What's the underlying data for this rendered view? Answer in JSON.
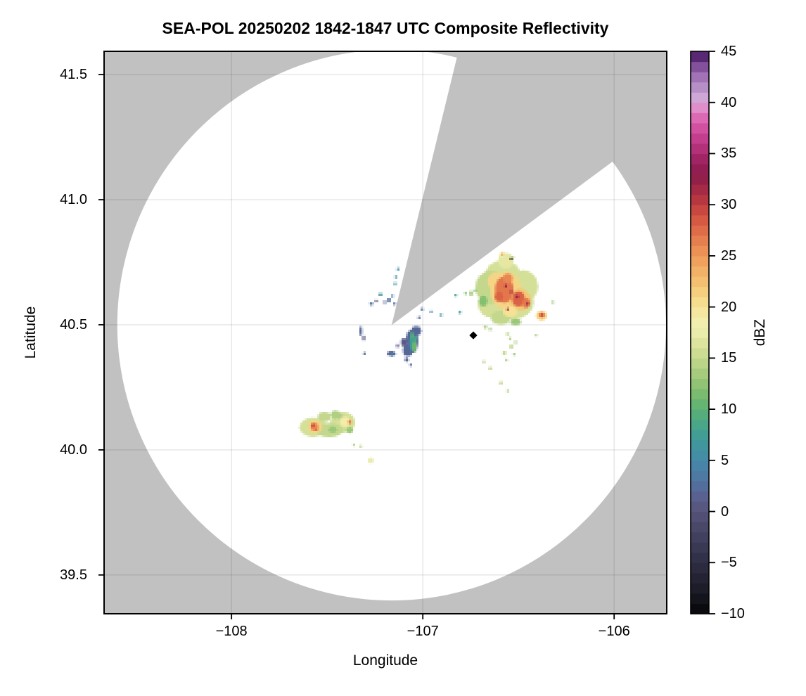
{
  "title": "SEA-POL 20250202 1842-1847 UTC Composite Reflectivity",
  "axes": {
    "xlabel": "Longitude",
    "ylabel": "Latitude",
    "xlim": [
      -108.666,
      -105.725
    ],
    "ylim": [
      39.345,
      41.593
    ],
    "xticks": [
      -108,
      -107,
      -106
    ],
    "yticks": [
      39.5,
      40.0,
      40.5,
      41.0,
      41.5
    ],
    "grid": true,
    "background_color": "#c1c1c1",
    "coverage_color": "#ffffff",
    "grid_color": "rgba(0,0,0,0.10)",
    "frame_color": "#000000"
  },
  "colorbar": {
    "label": "dBZ",
    "min": -10,
    "max": 45,
    "band_step": 1,
    "ticks": [
      -10,
      -5,
      0,
      5,
      10,
      15,
      20,
      25,
      30,
      35,
      40,
      45
    ],
    "colormap_anchors": [
      [
        -10,
        "#060608"
      ],
      [
        -8,
        "#191824"
      ],
      [
        -6,
        "#272639"
      ],
      [
        -4,
        "#36354f"
      ],
      [
        -2,
        "#454463"
      ],
      [
        0,
        "#555378"
      ],
      [
        1,
        "#5a5a87"
      ],
      [
        2,
        "#556797"
      ],
      [
        3,
        "#5073a0"
      ],
      [
        4,
        "#4b7ea6"
      ],
      [
        5,
        "#4589a7"
      ],
      [
        6,
        "#4292a2"
      ],
      [
        7,
        "#409a9a"
      ],
      [
        8,
        "#44a28e"
      ],
      [
        9,
        "#4ea981"
      ],
      [
        10,
        "#5cb075"
      ],
      [
        11,
        "#6fb76e"
      ],
      [
        12,
        "#85bf70"
      ],
      [
        13,
        "#9bc778"
      ],
      [
        14,
        "#b0cf82"
      ],
      [
        15,
        "#c3d88d"
      ],
      [
        16,
        "#d4e098"
      ],
      [
        17,
        "#e3e8a4"
      ],
      [
        18,
        "#f0efb1"
      ],
      [
        19,
        "#f4eca9"
      ],
      [
        20,
        "#f6e295"
      ],
      [
        21,
        "#f5d585"
      ],
      [
        22,
        "#f4c777"
      ],
      [
        23,
        "#f2b86b"
      ],
      [
        24,
        "#f0a960"
      ],
      [
        25,
        "#ed9959"
      ],
      [
        26,
        "#e98852"
      ],
      [
        27,
        "#e3764b"
      ],
      [
        28,
        "#da6245"
      ],
      [
        29,
        "#cf4f40"
      ],
      [
        30,
        "#c03e3f"
      ],
      [
        31,
        "#ae3043"
      ],
      [
        32,
        "#9a2447"
      ],
      [
        33,
        "#8c1c4a"
      ],
      [
        34,
        "#971f5b"
      ],
      [
        35,
        "#aa2a6e"
      ],
      [
        36,
        "#bc3784"
      ],
      [
        37,
        "#cc4597"
      ],
      [
        38,
        "#d85aa9"
      ],
      [
        39,
        "#e078bc"
      ],
      [
        39.7,
        "#df97cf"
      ],
      [
        40.5,
        "#cfa6d6"
      ],
      [
        41.5,
        "#b78fc7"
      ],
      [
        42.5,
        "#a172b5"
      ],
      [
        43.5,
        "#83519c"
      ],
      [
        44.3,
        "#643181"
      ],
      [
        45,
        "#3a1053"
      ]
    ]
  },
  "chart_data": {
    "type": "heatmap",
    "description": "Radar PPI composite reflectivity map. White disk = radar coverage circle on gray background; gray wedge = blocked sector NNE-NE of the radar; colored speckled patches = reflectivity echoes in dBZ.",
    "radar": {
      "center_lon": -107.163,
      "center_lat": 40.499,
      "range_lon_deg": 1.434,
      "range_lat_deg": 1.101
    },
    "blocked_sector": {
      "azimuth_start_deg": 13.7,
      "azimuth_end_deg": 53.5
    },
    "marker": {
      "lon": -106.736,
      "lat": 40.458,
      "shape": "diamond",
      "color": "#000000"
    },
    "echo_clusters": [
      {
        "name": "central-weak-echo",
        "dbz_range": [
          0,
          12
        ],
        "patches": [
          [
            -107.056,
            40.435,
            0.033,
            0.048,
            2
          ],
          [
            -107.078,
            40.399,
            0.026,
            0.025,
            2
          ],
          [
            -107.034,
            40.475,
            0.026,
            0.02,
            2
          ],
          [
            -107.1,
            40.43,
            0.015,
            0.017,
            1
          ],
          [
            -107.052,
            40.43,
            0.018,
            0.034,
            7
          ],
          [
            -107.044,
            40.413,
            0.011,
            0.022,
            11
          ],
          [
            -107.056,
            40.458,
            0.007,
            0.017,
            10
          ],
          [
            -107.037,
            40.441,
            0.007,
            0.011,
            9
          ],
          [
            -107.085,
            40.36,
            0.011,
            0.008,
            2
          ],
          [
            -107.269,
            40.584,
            0.011,
            0.006,
            3
          ],
          [
            -107.243,
            40.595,
            0.007,
            0.006,
            1
          ],
          [
            -107.221,
            40.621,
            0.011,
            0.006,
            6
          ],
          [
            -107.199,
            40.59,
            0.007,
            0.006,
            2
          ],
          [
            -107.177,
            40.598,
            0.011,
            0.008,
            3
          ],
          [
            -107.158,
            40.615,
            0.007,
            0.006,
            4
          ],
          [
            -107.147,
            40.584,
            0.007,
            0.006,
            2
          ],
          [
            -107.129,
            40.722,
            0.007,
            0.006,
            6
          ],
          [
            -107.14,
            40.691,
            0.007,
            0.006,
            5
          ],
          [
            -107.144,
            40.663,
            0.007,
            0.006,
            6
          ],
          [
            -107.324,
            40.474,
            0.007,
            0.02,
            2
          ],
          [
            -107.309,
            40.447,
            0.007,
            0.011,
            1
          ],
          [
            -107.305,
            40.385,
            0.007,
            0.006,
            2
          ],
          [
            -107.165,
            40.385,
            0.022,
            0.011,
            2
          ],
          [
            -107.158,
            40.379,
            0.007,
            0.006,
            5
          ],
          [
            -107.063,
            40.34,
            0.007,
            0.006,
            2
          ],
          [
            -107.132,
            40.416,
            0.007,
            0.008,
            1
          ],
          [
            -107.004,
            40.562,
            0.007,
            0.006,
            3
          ],
          [
            -106.956,
            40.553,
            0.007,
            0.006,
            5
          ],
          [
            -106.905,
            40.539,
            0.007,
            0.006,
            6
          ],
          [
            -107.019,
            40.528,
            0.007,
            0.006,
            2
          ]
        ]
      },
      {
        "name": "northeast-storm",
        "dbz_range": [
          12,
          34
        ],
        "patches": [
          [
            -106.581,
            40.683,
            0.099,
            0.076,
            16
          ],
          [
            -106.529,
            40.59,
            0.11,
            0.07,
            16
          ],
          [
            -106.636,
            40.581,
            0.077,
            0.053,
            16
          ],
          [
            -106.474,
            40.654,
            0.077,
            0.065,
            16
          ],
          [
            -106.566,
            40.756,
            0.04,
            0.031,
            17
          ],
          [
            -106.644,
            40.649,
            0.081,
            0.067,
            15
          ],
          [
            -106.592,
            40.528,
            0.051,
            0.028,
            15
          ],
          [
            -106.684,
            40.595,
            0.022,
            0.022,
            12
          ],
          [
            -106.515,
            40.511,
            0.029,
            0.014,
            13
          ],
          [
            -106.566,
            40.638,
            0.081,
            0.076,
            21
          ],
          [
            -106.493,
            40.601,
            0.059,
            0.045,
            22
          ],
          [
            -106.614,
            40.674,
            0.048,
            0.037,
            21
          ],
          [
            -106.544,
            40.553,
            0.037,
            0.022,
            20
          ],
          [
            -106.574,
            40.64,
            0.048,
            0.053,
            27
          ],
          [
            -106.5,
            40.604,
            0.033,
            0.031,
            28
          ],
          [
            -106.556,
            40.685,
            0.026,
            0.02,
            26
          ],
          [
            -106.46,
            40.587,
            0.022,
            0.02,
            27
          ],
          [
            -106.603,
            40.612,
            0.022,
            0.022,
            28
          ],
          [
            -106.566,
            40.655,
            0.007,
            0.006,
            33
          ],
          [
            -106.507,
            40.612,
            0.007,
            0.008,
            33
          ],
          [
            -106.452,
            40.584,
            0.007,
            0.006,
            32
          ],
          [
            -106.556,
            40.562,
            0.007,
            0.006,
            31
          ],
          [
            -106.537,
            40.632,
            0.007,
            0.006,
            32
          ],
          [
            -106.379,
            40.537,
            0.029,
            0.02,
            21
          ],
          [
            -106.379,
            40.539,
            0.015,
            0.011,
            27
          ],
          [
            -106.375,
            40.539,
            0.007,
            0.006,
            30
          ],
          [
            -106.585,
            40.781,
            0.015,
            0.011,
            18
          ],
          [
            -106.585,
            40.781,
            0.007,
            0.006,
            24
          ],
          [
            -106.559,
            40.747,
            0.011,
            0.008,
            20
          ],
          [
            -106.529,
            40.77,
            0.007,
            0.006,
            15
          ],
          [
            -106.828,
            40.618,
            0.007,
            0.006,
            8
          ],
          [
            -106.777,
            40.626,
            0.007,
            0.006,
            12
          ],
          [
            -106.747,
            40.626,
            0.011,
            0.011,
            14
          ],
          [
            -106.725,
            40.637,
            0.007,
            0.006,
            12
          ],
          [
            -106.806,
            40.55,
            0.007,
            0.006,
            7
          ],
          [
            -106.673,
            40.491,
            0.011,
            0.006,
            14
          ],
          [
            -106.647,
            40.483,
            0.007,
            0.006,
            13
          ],
          [
            -106.556,
            40.463,
            0.011,
            0.006,
            15
          ],
          [
            -106.544,
            40.444,
            0.007,
            0.006,
            14
          ],
          [
            -106.537,
            40.413,
            0.011,
            0.008,
            15
          ],
          [
            -106.515,
            40.43,
            0.007,
            0.006,
            13
          ],
          [
            -106.574,
            40.388,
            0.011,
            0.008,
            15
          ],
          [
            -106.563,
            40.359,
            0.007,
            0.006,
            14
          ],
          [
            -106.522,
            40.382,
            0.007,
            0.006,
            13
          ],
          [
            -106.681,
            40.351,
            0.007,
            0.006,
            14
          ],
          [
            -106.647,
            40.326,
            0.011,
            0.006,
            15
          ],
          [
            -106.592,
            40.267,
            0.011,
            0.006,
            15
          ],
          [
            -106.556,
            40.236,
            0.007,
            0.006,
            14
          ],
          [
            -106.408,
            40.458,
            0.007,
            0.006,
            14
          ],
          [
            -106.32,
            40.59,
            0.007,
            0.006,
            13
          ]
        ]
      },
      {
        "name": "southwest-storm",
        "dbz_range": [
          13,
          30
        ],
        "patches": [
          [
            -107.574,
            40.09,
            0.07,
            0.039,
            16
          ],
          [
            -107.419,
            40.11,
            0.066,
            0.042,
            16
          ],
          [
            -107.489,
            40.079,
            0.074,
            0.028,
            15
          ],
          [
            -107.515,
            40.132,
            0.033,
            0.02,
            15
          ],
          [
            -107.456,
            40.14,
            0.026,
            0.017,
            14
          ],
          [
            -107.471,
            40.081,
            0.022,
            0.014,
            13
          ],
          [
            -107.382,
            40.079,
            0.018,
            0.014,
            13
          ],
          [
            -107.43,
            40.132,
            0.015,
            0.011,
            14
          ],
          [
            -107.563,
            40.093,
            0.037,
            0.025,
            21
          ],
          [
            -107.566,
            40.093,
            0.022,
            0.017,
            26
          ],
          [
            -107.574,
            40.098,
            0.011,
            0.008,
            29
          ],
          [
            -107.555,
            40.081,
            0.007,
            0.006,
            28
          ],
          [
            -107.408,
            40.112,
            0.026,
            0.02,
            19
          ],
          [
            -107.382,
            40.112,
            0.011,
            0.008,
            24
          ],
          [
            -107.382,
            40.112,
            0.007,
            0.006,
            27
          ],
          [
            -107.36,
            40.02,
            0.007,
            0.006,
            14
          ],
          [
            -107.324,
            40.014,
            0.007,
            0.006,
            15
          ],
          [
            -107.272,
            39.958,
            0.015,
            0.011,
            17
          ],
          [
            -107.272,
            39.958,
            0.007,
            0.006,
            19
          ]
        ]
      },
      {
        "name": "stray-dark-pixel",
        "dbz_range": [
          -9,
          -9
        ],
        "patches": [
          [
            -106.537,
            40.764,
            0.004,
            0.004,
            -9
          ]
        ]
      }
    ]
  }
}
